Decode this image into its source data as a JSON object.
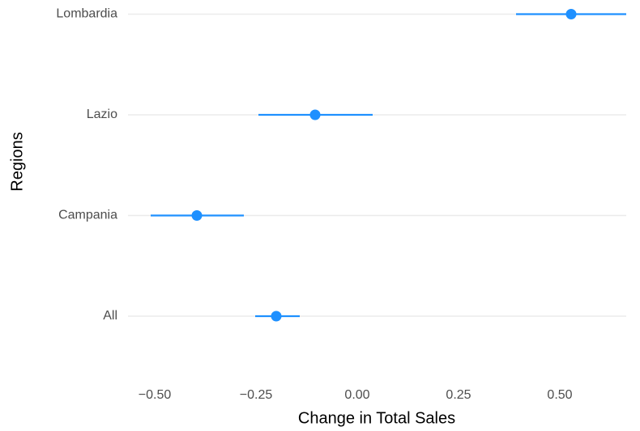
{
  "chart_data": {
    "type": "pointrange",
    "xlabel": "Change in Total Sales",
    "ylabel": "Regions",
    "categories": [
      "All",
      "Campania",
      "Lazio",
      "Lombardia"
    ],
    "series": [
      {
        "color": "#1e90ff",
        "values": [
          -0.2,
          -0.396,
          -0.104,
          0.528
        ],
        "lower": [
          -0.252,
          -0.51,
          -0.244,
          0.392
        ],
        "upper": [
          -0.142,
          -0.28,
          0.038,
          0.664
        ]
      }
    ],
    "xlim": [
      -0.566,
      0.664
    ],
    "xticks": [
      {
        "value": -0.5,
        "label": "−0.50"
      },
      {
        "value": -0.25,
        "label": "−0.25"
      },
      {
        "value": 0,
        "label": "0.00"
      },
      0.25,
      {
        "value": 0.5,
        "label": "0.50"
      }
    ],
    "grid": true
  }
}
